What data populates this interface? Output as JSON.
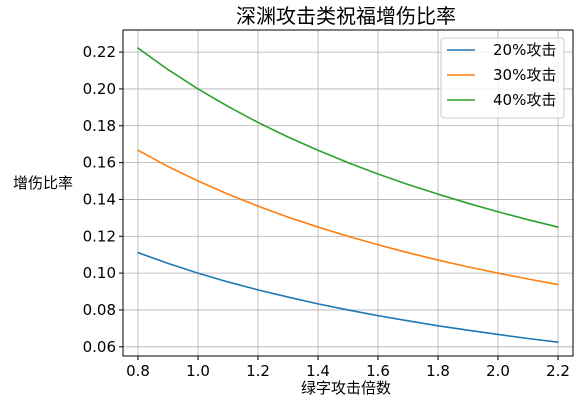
{
  "chart_data": {
    "type": "line",
    "title": "深渊攻击类祝福增伤比率",
    "xlabel": "绿字攻击倍数",
    "ylabel": "增伤比率",
    "xlim": [
      0.75,
      2.25
    ],
    "ylim": [
      0.055,
      0.232
    ],
    "xticks": [
      0.8,
      1.0,
      1.2,
      1.4,
      1.6,
      1.8,
      2.0,
      2.2
    ],
    "yticks": [
      0.06,
      0.08,
      0.1,
      0.12,
      0.14,
      0.16,
      0.18,
      0.2,
      0.22
    ],
    "xtick_labels": [
      "0.8",
      "1.0",
      "1.2",
      "1.4",
      "1.6",
      "1.8",
      "2.0",
      "2.2"
    ],
    "ytick_labels": [
      "0.06",
      "0.08",
      "0.10",
      "0.12",
      "0.14",
      "0.16",
      "0.18",
      "0.20",
      "0.22"
    ],
    "grid": true,
    "legend_position": "top-right",
    "x": [
      0.8,
      0.9,
      1.0,
      1.1,
      1.2,
      1.3,
      1.4,
      1.5,
      1.6,
      1.7,
      1.8,
      1.9,
      2.0,
      2.1,
      2.2
    ],
    "series": [
      {
        "name": "20%攻击",
        "color": "#1f77b4",
        "values": [
          0.1111,
          0.1053,
          0.1,
          0.0952,
          0.0909,
          0.087,
          0.0833,
          0.08,
          0.0769,
          0.0741,
          0.0714,
          0.069,
          0.0667,
          0.0645,
          0.0625
        ]
      },
      {
        "name": "30%攻击",
        "color": "#ff7f0e",
        "values": [
          0.1667,
          0.1579,
          0.15,
          0.1429,
          0.1364,
          0.1304,
          0.125,
          0.12,
          0.1154,
          0.1111,
          0.1071,
          0.1034,
          0.1,
          0.0968,
          0.0938
        ]
      },
      {
        "name": "40%攻击",
        "color": "#2ca02c",
        "values": [
          0.2222,
          0.2105,
          0.2,
          0.1905,
          0.1818,
          0.1739,
          0.1667,
          0.16,
          0.1538,
          0.1481,
          0.1429,
          0.1379,
          0.1333,
          0.129,
          0.125
        ]
      }
    ]
  }
}
